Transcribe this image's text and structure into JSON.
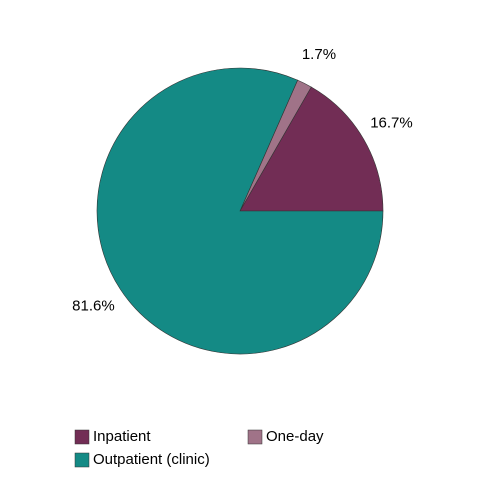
{
  "chart_data": {
    "type": "pie",
    "categories": [
      "Inpatient",
      "One-day",
      "Outpatient (clinic)"
    ],
    "values": [
      16.7,
      1.7,
      81.6
    ],
    "value_labels": [
      "16.7%",
      "1.7%",
      "81.6%"
    ],
    "colors": [
      "#722d55",
      "#a07388",
      "#148a85"
    ]
  }
}
